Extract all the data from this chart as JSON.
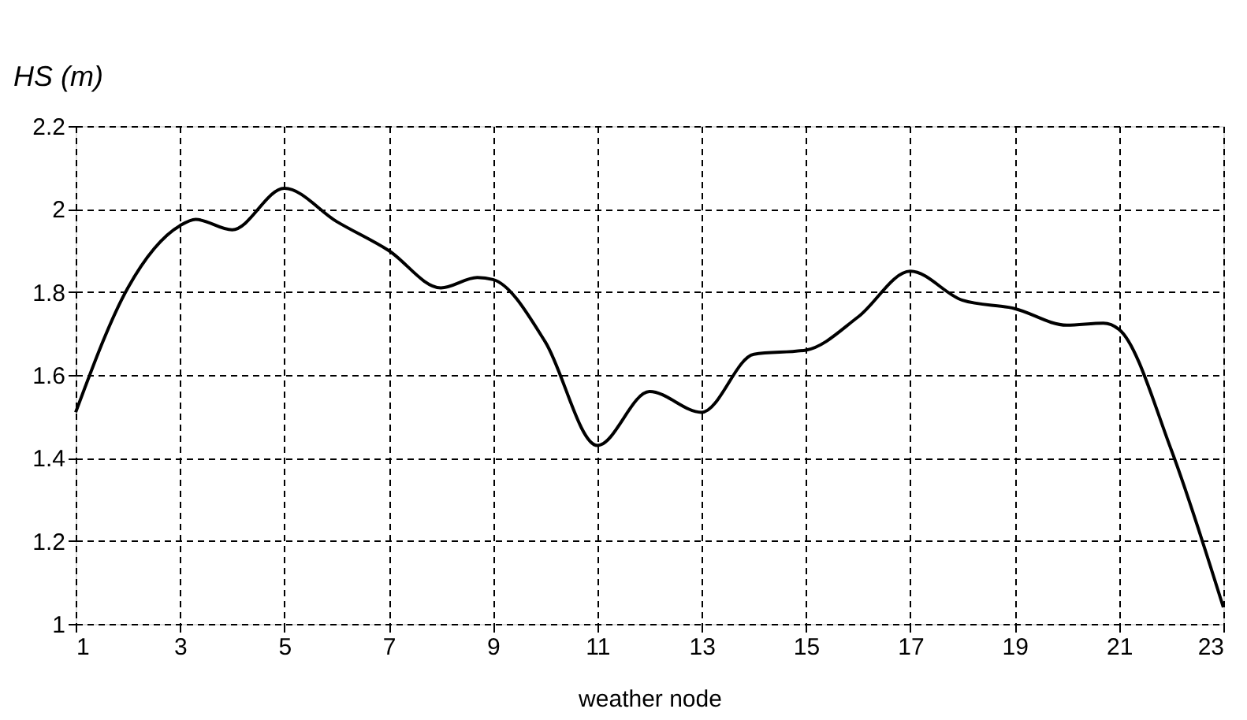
{
  "chart_data": {
    "type": "line",
    "xlabel": "weather node",
    "ylabel": "HS (m)",
    "x": [
      1,
      2,
      3,
      3.3,
      4,
      5,
      6,
      7,
      8,
      8.7,
      9,
      10,
      11,
      12,
      13,
      14,
      15,
      16,
      17,
      18,
      19,
      20,
      20.7,
      21,
      22,
      23
    ],
    "series": [
      {
        "color": "#000000",
        "values": [
          1.51,
          1.81,
          1.96,
          1.975,
          1.95,
          2.05,
          1.97,
          1.9,
          1.81,
          1.835,
          1.83,
          1.68,
          1.43,
          1.56,
          1.51,
          1.65,
          1.66,
          1.74,
          1.85,
          1.78,
          1.76,
          1.72,
          1.725,
          1.71,
          1.42,
          1.04
        ]
      }
    ],
    "xlim": [
      1,
      23
    ],
    "xticks": [
      1,
      3,
      5,
      7,
      9,
      11,
      13,
      15,
      17,
      19,
      21,
      23
    ],
    "ylim": [
      1,
      2.2
    ],
    "yticks": [
      1,
      1.2,
      1.4,
      1.6,
      1.8,
      2,
      2.2
    ],
    "grid": true,
    "marker": "none",
    "line_style": "solid"
  }
}
